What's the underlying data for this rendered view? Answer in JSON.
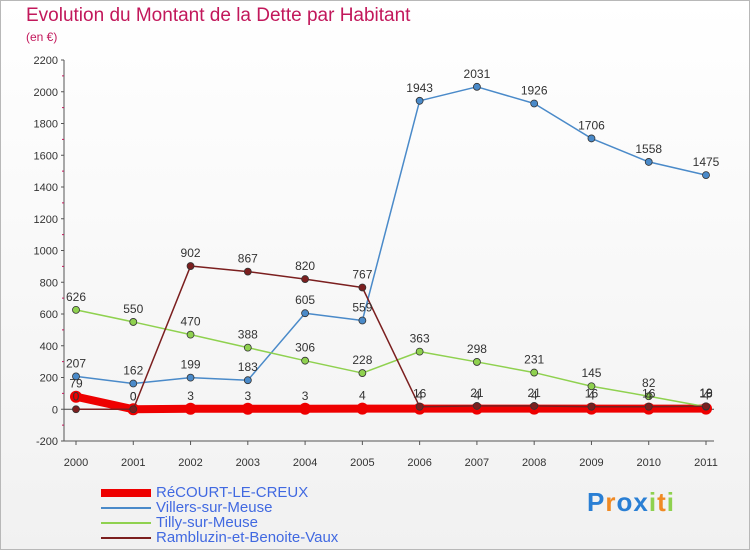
{
  "header": {
    "title": "Evolution du Montant de la Dette par Habitant",
    "subtitle": "(en €)"
  },
  "logo": {
    "text": "Proxiti"
  },
  "chart_data": {
    "type": "line",
    "title": "Evolution du Montant de la Dette par Habitant",
    "ylabel": "(en €)",
    "xlabel": "",
    "categories": [
      "2000",
      "2001",
      "2002",
      "2003",
      "2004",
      "2005",
      "2006",
      "2007",
      "2008",
      "2009",
      "2010",
      "2011"
    ],
    "ylim": [
      -200,
      2200
    ],
    "yticks": [
      -200,
      0,
      200,
      400,
      600,
      800,
      1000,
      1200,
      1400,
      1600,
      1800,
      2000,
      2200
    ],
    "grid": false,
    "legend_position": "bottom-left",
    "series": [
      {
        "name": "RéCOURT-LE-CREUX",
        "color": "#ee0000",
        "values": [
          79,
          0,
          3,
          3,
          3,
          4,
          4,
          4,
          4,
          4,
          4,
          4
        ],
        "labels": [
          "79",
          "0",
          "3",
          "3",
          "3",
          "4",
          "4",
          "4",
          "4",
          "4",
          "4",
          "4"
        ]
      },
      {
        "name": "Villers-sur-Meuse",
        "color": "#4a8ac9",
        "values": [
          207,
          162,
          199,
          183,
          605,
          559,
          1943,
          2031,
          1926,
          1706,
          1558,
          1475
        ],
        "labels": [
          "207",
          "162",
          "199",
          "183",
          "605",
          "559",
          "1943",
          "2031",
          "1926",
          "1706",
          "1558",
          "1475"
        ]
      },
      {
        "name": "Tilly-sur-Meuse",
        "color": "#8fd14f",
        "values": [
          626,
          550,
          470,
          388,
          306,
          228,
          363,
          298,
          231,
          145,
          82,
          16
        ],
        "labels": [
          "626",
          "550",
          "470",
          "388",
          "306",
          "228",
          "363",
          "298",
          "231",
          "145",
          "82",
          "16"
        ]
      },
      {
        "name": "Rambluzin-et-Benoite-Vaux",
        "color": "#7b1f1f",
        "values": [
          0,
          0,
          902,
          867,
          820,
          767,
          16,
          21,
          21,
          16,
          16,
          19
        ],
        "labels": [
          "0",
          "0",
          "902",
          "867",
          "820",
          "767",
          "16",
          "21",
          "21",
          "16",
          "16",
          "19"
        ]
      }
    ]
  }
}
